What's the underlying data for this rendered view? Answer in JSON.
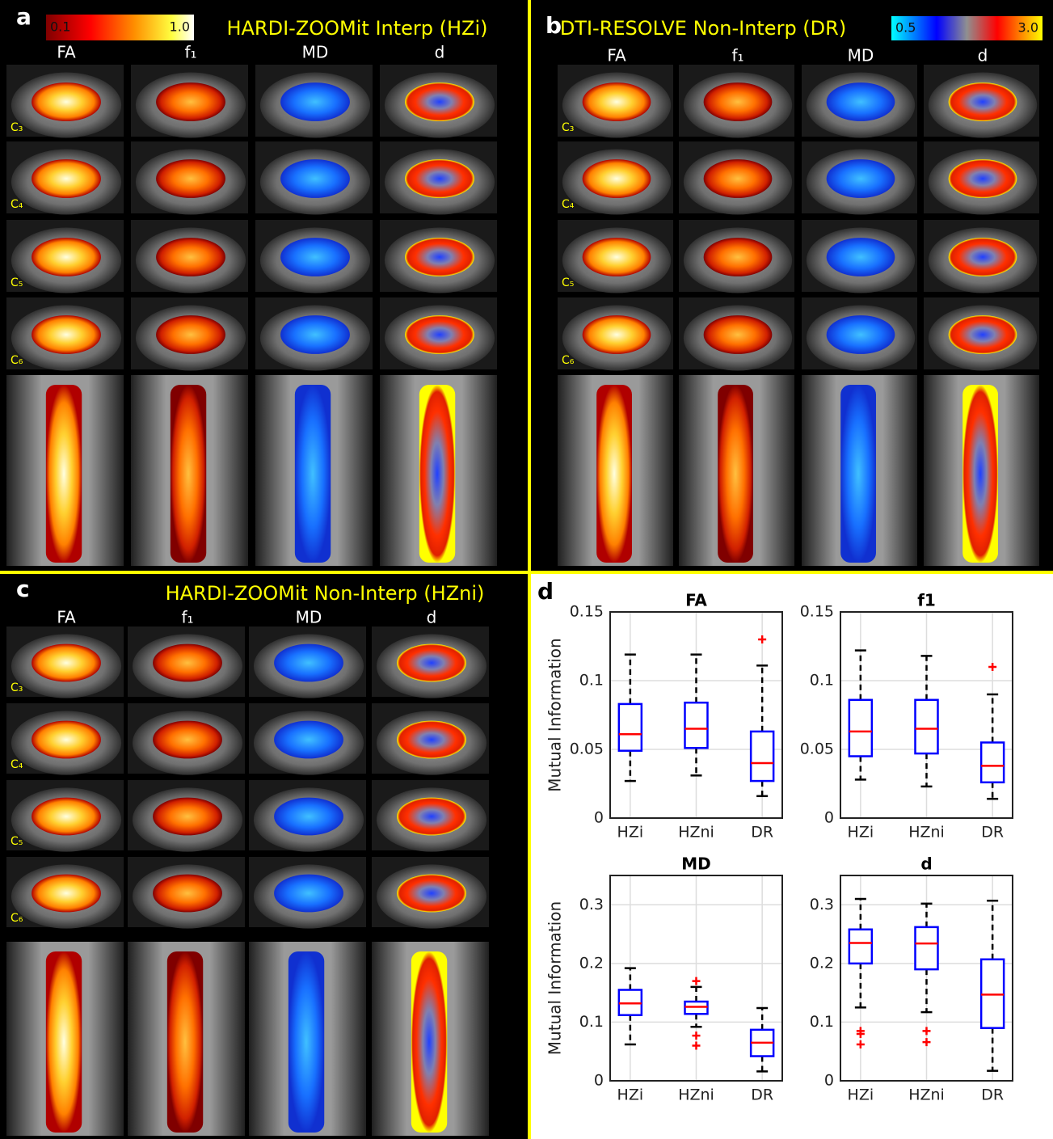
{
  "panels": [
    {
      "letter": "a",
      "title": "HARDI-ZOOMit Interp (HZi)",
      "colorbar": [
        "0.1",
        "1.0"
      ],
      "columns": [
        "FA",
        "f₁",
        "MD",
        "d"
      ],
      "rows": [
        "C₃",
        "C₄",
        "C₅",
        "C₆"
      ]
    },
    {
      "letter": "b",
      "title": "DTI-RESOLVE Non-Interp (DR)",
      "colorbar": [
        "0.5",
        "3.0"
      ],
      "columns": [
        "FA",
        "f₁",
        "MD",
        "d"
      ],
      "rows": [
        "C₃",
        "C₄",
        "C₅",
        "C₆"
      ]
    },
    {
      "letter": "c",
      "title": "HARDI-ZOOMit Non-Interp (HZni)",
      "columns": [
        "FA",
        "f₁",
        "MD",
        "d"
      ],
      "rows": [
        "C₃",
        "C₄",
        "C₅",
        "C₆"
      ]
    }
  ],
  "plot_letter": "d",
  "chart_data": [
    {
      "type": "box",
      "title": "FA",
      "ylabel": "Mutual Information",
      "categories": [
        "HZi",
        "HZni",
        "DR"
      ],
      "ylim": [
        0,
        0.15
      ],
      "yticks": [
        0,
        0.05,
        0.1,
        0.15
      ],
      "grid": true,
      "box_color": "#0000ff",
      "median_color": "#ff0000",
      "outlier_color": "#ff0000",
      "boxes": [
        {
          "whisker_low": 0.027,
          "q1": 0.049,
          "median": 0.061,
          "q3": 0.083,
          "whisker_high": 0.119,
          "outliers": []
        },
        {
          "whisker_low": 0.031,
          "q1": 0.051,
          "median": 0.065,
          "q3": 0.084,
          "whisker_high": 0.119,
          "outliers": []
        },
        {
          "whisker_low": 0.016,
          "q1": 0.027,
          "median": 0.04,
          "q3": 0.063,
          "whisker_high": 0.111,
          "outliers": [
            0.13
          ]
        }
      ]
    },
    {
      "type": "box",
      "title": "f1",
      "categories": [
        "HZi",
        "HZni",
        "DR"
      ],
      "ylim": [
        0,
        0.15
      ],
      "yticks": [
        0,
        0.05,
        0.1,
        0.15
      ],
      "grid": true,
      "box_color": "#0000ff",
      "median_color": "#ff0000",
      "outlier_color": "#ff0000",
      "boxes": [
        {
          "whisker_low": 0.028,
          "q1": 0.045,
          "median": 0.063,
          "q3": 0.086,
          "whisker_high": 0.122,
          "outliers": []
        },
        {
          "whisker_low": 0.023,
          "q1": 0.047,
          "median": 0.065,
          "q3": 0.086,
          "whisker_high": 0.118,
          "outliers": []
        },
        {
          "whisker_low": 0.014,
          "q1": 0.026,
          "median": 0.038,
          "q3": 0.055,
          "whisker_high": 0.09,
          "outliers": [
            0.11
          ]
        }
      ]
    },
    {
      "type": "box",
      "title": "MD",
      "ylabel": "Mutual Information",
      "categories": [
        "HZi",
        "HZni",
        "DR"
      ],
      "ylim": [
        0,
        0.35
      ],
      "yticks": [
        0,
        0.1,
        0.2,
        0.3
      ],
      "grid": true,
      "box_color": "#0000ff",
      "median_color": "#ff0000",
      "outlier_color": "#ff0000",
      "boxes": [
        {
          "whisker_low": 0.062,
          "q1": 0.112,
          "median": 0.132,
          "q3": 0.155,
          "whisker_high": 0.192,
          "outliers": []
        },
        {
          "whisker_low": 0.092,
          "q1": 0.114,
          "median": 0.126,
          "q3": 0.135,
          "whisker_high": 0.16,
          "outliers": [
            0.17,
            0.077,
            0.06
          ]
        },
        {
          "whisker_low": 0.016,
          "q1": 0.042,
          "median": 0.065,
          "q3": 0.087,
          "whisker_high": 0.124,
          "outliers": []
        }
      ]
    },
    {
      "type": "box",
      "title": "d",
      "categories": [
        "HZi",
        "HZni",
        "DR"
      ],
      "ylim": [
        0,
        0.35
      ],
      "yticks": [
        0,
        0.1,
        0.2,
        0.3
      ],
      "grid": true,
      "box_color": "#0000ff",
      "median_color": "#ff0000",
      "outlier_color": "#ff0000",
      "boxes": [
        {
          "whisker_low": 0.125,
          "q1": 0.2,
          "median": 0.235,
          "q3": 0.258,
          "whisker_high": 0.31,
          "outliers": [
            0.085,
            0.08,
            0.062
          ]
        },
        {
          "whisker_low": 0.117,
          "q1": 0.19,
          "median": 0.234,
          "q3": 0.262,
          "whisker_high": 0.302,
          "outliers": [
            0.085,
            0.066
          ]
        },
        {
          "whisker_low": 0.017,
          "q1": 0.09,
          "median": 0.147,
          "q3": 0.207,
          "whisker_high": 0.307,
          "outliers": []
        }
      ]
    }
  ]
}
